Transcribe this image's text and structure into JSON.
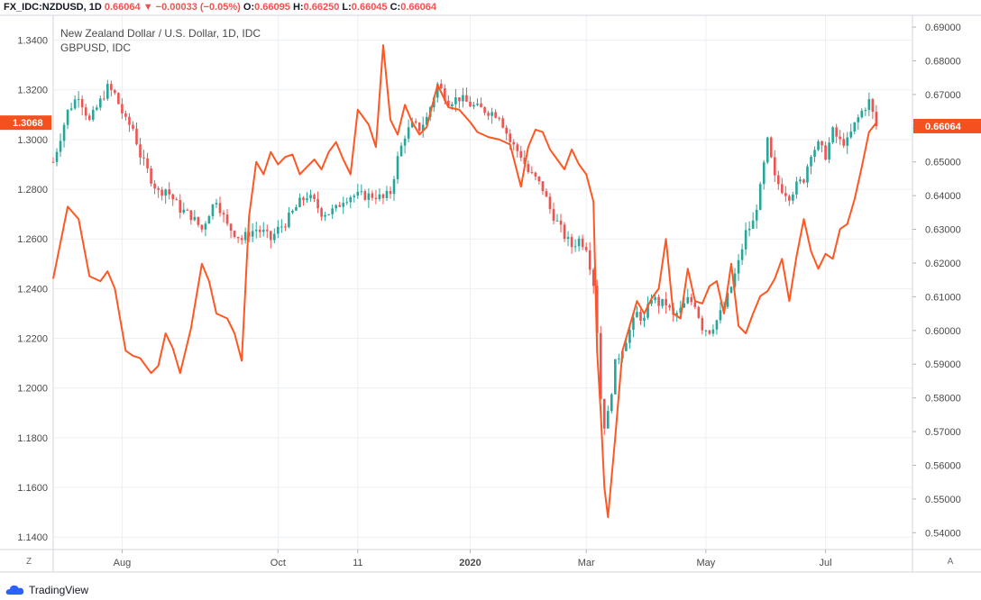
{
  "header": {
    "symbol": "FX_IDC:NZDUSD, 1D",
    "last": "0.66064",
    "change_arrow": "▼",
    "change": "−0.00033 (−0.05%)",
    "o_label": "O:",
    "o": "0.66095",
    "h_label": "H:",
    "h": "0.66250",
    "l_label": "L:",
    "l": "0.66045",
    "c_label": "C:",
    "c": "0.66064"
  },
  "legend": {
    "main": "New Zealand Dollar / U.S. Dollar, 1D, IDC",
    "compare": "GBPUSD, IDC"
  },
  "corner_left": "Z",
  "corner_right": "A",
  "brand": "TradingView",
  "colors": {
    "up": "#26a69a",
    "down": "#ef5350",
    "compare_line": "#ff5722",
    "badge": "#f4511e",
    "grid": "#eceff3"
  },
  "chart_data": {
    "type": "line",
    "x_axis": {
      "tick_labels": [
        "Aug",
        "Oct",
        "11",
        "2020",
        "Mar",
        "May",
        "Jul"
      ],
      "ticks_index": [
        19,
        62,
        84,
        115,
        147,
        180,
        213
      ]
    },
    "left_axis": {
      "series": "GBPUSD",
      "ylim": [
        1.135,
        1.35
      ],
      "ticks": [
        "1.3400",
        "1.3200",
        "1.3000",
        "1.2800",
        "1.2600",
        "1.2400",
        "1.2200",
        "1.2000",
        "1.1800",
        "1.1600",
        "1.1400"
      ],
      "last_value": "1.3068"
    },
    "right_axis": {
      "series": "NZDUSD",
      "ylim": [
        0.535,
        0.6935
      ],
      "ticks": [
        "0.69000",
        "0.68000",
        "0.67000",
        "0.66000",
        "0.65000",
        "0.64000",
        "0.63000",
        "0.62000",
        "0.61000",
        "0.60000",
        "0.59000",
        "0.58000",
        "0.57000",
        "0.56000",
        "0.55000",
        "0.54000"
      ],
      "last_value": "0.66064"
    },
    "series": [
      {
        "name": "GBPUSD",
        "axis": "left",
        "kind": "line",
        "x": [
          0,
          4,
          7,
          10,
          13,
          15,
          17,
          20,
          22,
          24,
          27,
          29,
          31,
          33,
          35,
          38,
          41,
          43,
          45,
          48,
          50,
          52,
          54,
          56,
          58,
          60,
          62,
          64,
          66,
          68,
          70,
          72,
          74,
          76,
          78,
          80,
          82,
          84,
          87,
          89,
          91,
          93,
          95,
          97,
          99,
          101,
          103,
          106,
          109,
          112,
          115,
          117,
          120,
          123,
          126,
          129,
          131,
          133,
          135,
          137,
          139,
          141,
          143,
          145,
          147,
          149,
          150,
          151,
          152,
          153,
          155,
          157,
          159,
          161,
          163,
          165,
          167,
          169,
          171,
          173,
          175,
          177,
          179,
          181,
          183,
          185,
          187,
          189,
          191,
          193,
          195,
          197,
          199,
          201,
          203,
          205,
          207,
          209,
          211,
          213,
          215,
          217,
          219,
          221,
          223,
          225,
          227
        ],
        "values": [
          1.244,
          1.273,
          1.268,
          1.245,
          1.243,
          1.247,
          1.24,
          1.215,
          1.213,
          1.212,
          1.206,
          1.209,
          1.222,
          1.216,
          1.206,
          1.224,
          1.25,
          1.243,
          1.23,
          1.228,
          1.222,
          1.211,
          1.269,
          1.291,
          1.286,
          1.295,
          1.29,
          1.293,
          1.294,
          1.286,
          1.289,
          1.292,
          1.288,
          1.295,
          1.299,
          1.292,
          1.286,
          1.312,
          1.306,
          1.297,
          1.338,
          1.308,
          1.302,
          1.314,
          1.307,
          1.302,
          1.305,
          1.322,
          1.313,
          1.312,
          1.307,
          1.303,
          1.301,
          1.3,
          1.298,
          1.281,
          1.297,
          1.304,
          1.303,
          1.296,
          1.292,
          1.288,
          1.296,
          1.29,
          1.286,
          1.275,
          1.215,
          1.19,
          1.16,
          1.148,
          1.18,
          1.215,
          1.225,
          1.235,
          1.23,
          1.236,
          1.24,
          1.26,
          1.23,
          1.228,
          1.248,
          1.235,
          1.234,
          1.241,
          1.243,
          1.23,
          1.25,
          1.225,
          1.222,
          1.23,
          1.237,
          1.239,
          1.244,
          1.252,
          1.235,
          1.253,
          1.268,
          1.255,
          1.248,
          1.254,
          1.252,
          1.264,
          1.266,
          1.276,
          1.289,
          1.303,
          1.3068
        ]
      },
      {
        "name": "NZDUSD",
        "axis": "right",
        "kind": "candles",
        "x": [
          0,
          4,
          7,
          10,
          13,
          15,
          17,
          20,
          22,
          24,
          27,
          29,
          31,
          33,
          35,
          38,
          41,
          43,
          45,
          48,
          50,
          52,
          54,
          56,
          58,
          60,
          62,
          64,
          66,
          68,
          70,
          72,
          74,
          76,
          78,
          80,
          82,
          84,
          87,
          89,
          91,
          93,
          95,
          97,
          99,
          101,
          103,
          106,
          109,
          112,
          115,
          117,
          120,
          123,
          126,
          129,
          131,
          133,
          135,
          137,
          139,
          141,
          143,
          145,
          147,
          149,
          150,
          151,
          152,
          153,
          155,
          157,
          159,
          161,
          163,
          165,
          167,
          169,
          171,
          173,
          175,
          177,
          179,
          181,
          183,
          185,
          187,
          189,
          191,
          193,
          195,
          197,
          199,
          201,
          203,
          205,
          207,
          209,
          211,
          213,
          215,
          217,
          219,
          221,
          223,
          225,
          227
        ],
        "values": [
          0.65,
          0.665,
          0.67,
          0.662,
          0.668,
          0.672,
          0.67,
          0.662,
          0.66,
          0.652,
          0.645,
          0.641,
          0.642,
          0.639,
          0.636,
          0.634,
          0.63,
          0.635,
          0.639,
          0.631,
          0.629,
          0.627,
          0.629,
          0.63,
          0.629,
          0.627,
          0.63,
          0.632,
          0.635,
          0.638,
          0.64,
          0.638,
          0.635,
          0.635,
          0.636,
          0.639,
          0.64,
          0.64,
          0.64,
          0.64,
          0.639,
          0.641,
          0.651,
          0.658,
          0.661,
          0.66,
          0.663,
          0.673,
          0.668,
          0.669,
          0.667,
          0.666,
          0.665,
          0.664,
          0.656,
          0.652,
          0.647,
          0.645,
          0.642,
          0.636,
          0.632,
          0.628,
          0.625,
          0.627,
          0.625,
          0.614,
          0.6,
          0.58,
          0.572,
          0.575,
          0.59,
          0.595,
          0.6,
          0.605,
          0.603,
          0.61,
          0.608,
          0.608,
          0.604,
          0.606,
          0.609,
          0.608,
          0.601,
          0.6,
          0.603,
          0.607,
          0.613,
          0.62,
          0.629,
          0.632,
          0.642,
          0.656,
          0.645,
          0.642,
          0.64,
          0.643,
          0.645,
          0.653,
          0.655,
          0.652,
          0.659,
          0.656,
          0.656,
          0.661,
          0.665,
          0.668,
          0.6606
        ]
      }
    ]
  }
}
